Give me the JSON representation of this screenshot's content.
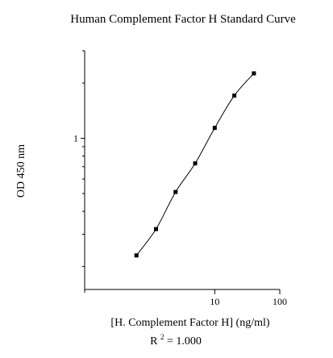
{
  "chart_data": {
    "type": "scatter",
    "title": "Human Complement Factor H Standard Curve",
    "xlabel": "[H. Complement Factor H] (ng/ml)",
    "ylabel": "OD 450 nm",
    "x_scale": "log",
    "y_scale": "log",
    "xlim": [
      0.1,
      100
    ],
    "ylim": [
      0.15,
      3.0
    ],
    "x_ticks": [
      {
        "value": 10,
        "label": "10"
      },
      {
        "value": 100,
        "label": "100"
      }
    ],
    "y_ticks": [
      {
        "value": 1,
        "label": "1"
      }
    ],
    "grid": false,
    "fit": "smooth curve",
    "series": [
      {
        "x": [
          0.625,
          1.25,
          2.5,
          5,
          10,
          20,
          40
        ],
        "y": [
          0.23,
          0.32,
          0.51,
          0.73,
          1.14,
          1.71,
          2.26
        ]
      }
    ],
    "annotation": {
      "r_label": "R",
      "r_sup": "2",
      "r_value": " = 1.000"
    }
  },
  "colors": {
    "line": "#000000",
    "marker": "#000000",
    "background": "#ffffff"
  }
}
